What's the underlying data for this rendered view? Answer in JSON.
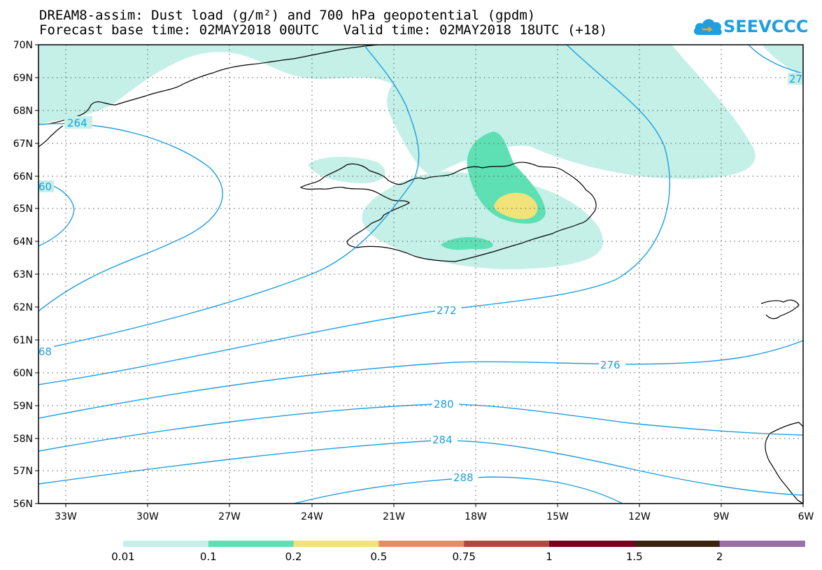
{
  "title": {
    "line1": "DREAM8-assim: Dust load (g/m²) and 700 hPa geopotential (gpdm)",
    "line2": "Forecast base time: 02MAY2018 00UTC   Valid time: 02MAY2018 18UTC (+18)"
  },
  "logo": {
    "text": "SEEVCCC",
    "icon": "cloud-icon"
  },
  "map": {
    "lat_range": [
      56,
      70
    ],
    "lon_range": [
      -34.5,
      -6
    ],
    "lat_labels": [
      "56N",
      "57N",
      "58N",
      "59N",
      "60N",
      "61N",
      "62N",
      "63N",
      "64N",
      "65N",
      "66N",
      "67N",
      "68N",
      "69N",
      "70N"
    ],
    "lon_labels": [
      "33W",
      "30W",
      "27W",
      "24W",
      "21W",
      "18W",
      "15W",
      "12W",
      "9W",
      "6W"
    ],
    "grid": "dotted",
    "contour_color": "#1e9fe0",
    "contour_labels": [
      "264",
      "60",
      "68",
      "272",
      "276",
      "280",
      "284",
      "288",
      "27"
    ]
  },
  "colorbar": {
    "colors": [
      "#c4f0e8",
      "#5ee0b4",
      "#f2e27a",
      "#e88c68",
      "#b04a40",
      "#7a0020",
      "#3a2410",
      "#9a70a8"
    ],
    "labels": [
      "0.01",
      "0.1",
      "0.2",
      "0.5",
      "0.75",
      "1",
      "1.5",
      "2"
    ]
  }
}
